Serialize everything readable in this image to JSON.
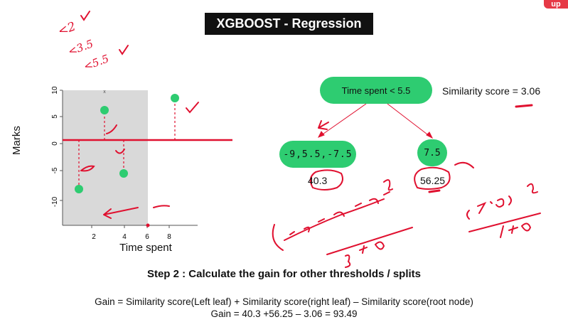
{
  "title": "XGBOOST - Regression",
  "logo": "up",
  "plot": {
    "x_label": "Time spent",
    "y_label": "Marks",
    "x_ticks": [
      "2",
      "4",
      "6",
      "8"
    ],
    "y_ticks": [
      "10",
      "5",
      "0",
      "-5",
      "-10"
    ],
    "top_mark": "x",
    "points": [
      {
        "x": 1.2,
        "y": -7.5
      },
      {
        "x": 2.8,
        "y": 6.5
      },
      {
        "x": 4.0,
        "y": -5.0
      },
      {
        "x": 7.2,
        "y": 8.5
      }
    ]
  },
  "tree": {
    "root_label": "Time spent < 5.5",
    "root_similarity": "Similarity score = 3.06",
    "left_leaf": "-9,5.5,-7.5",
    "right_leaf": "7.5",
    "left_score": "40.3",
    "right_score": "56.25"
  },
  "handwriting": {
    "thresholds": [
      "<2",
      "<3.5",
      "<5.5"
    ]
  },
  "step_title": "Step 2 : Calculate the gain for other thresholds / splits",
  "formula_line1": "Gain = Similarity score(Left leaf) + Similarity score(right leaf) – Similarity score(root node)",
  "formula_line2": "Gain = 40.3 +56.25 – 3.06 = 93.49",
  "colors": {
    "node": "#2ecc71",
    "annotation": "#e0102f",
    "title_bg": "#111111"
  }
}
